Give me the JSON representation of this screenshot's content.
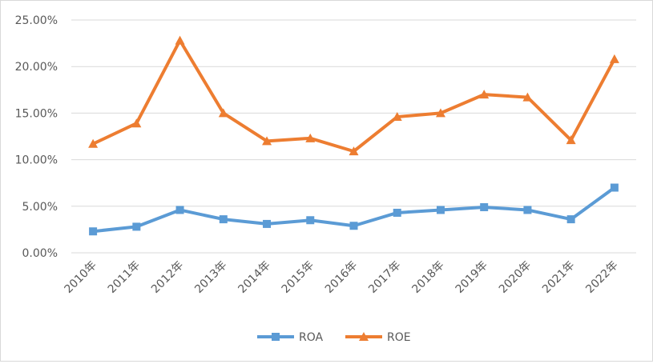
{
  "chart_data": {
    "type": "line",
    "title": "",
    "xlabel": "",
    "ylabel": "",
    "categories": [
      "2010年",
      "2011年",
      "2012年",
      "2013年",
      "2014年",
      "2015年",
      "2016年",
      "2017年",
      "2018年",
      "2019年",
      "2020年",
      "2021年",
      "2022年"
    ],
    "y_ticks": [
      "0.00%",
      "5.00%",
      "10.00%",
      "15.00%",
      "20.00%",
      "25.00%"
    ],
    "ylim": [
      0,
      25
    ],
    "grid": true,
    "legend_position": "bottom",
    "series": [
      {
        "name": "ROA",
        "color": "#5b9bd5",
        "marker": "square",
        "values": [
          2.3,
          2.8,
          4.6,
          3.6,
          3.1,
          3.5,
          2.9,
          4.3,
          4.6,
          4.9,
          4.6,
          3.6,
          7.0
        ]
      },
      {
        "name": "ROE",
        "color": "#ed7d31",
        "marker": "triangle",
        "values": [
          11.7,
          13.9,
          22.8,
          15.0,
          12.0,
          12.3,
          10.9,
          14.6,
          15.0,
          17.0,
          16.7,
          12.1,
          20.8
        ]
      }
    ]
  }
}
